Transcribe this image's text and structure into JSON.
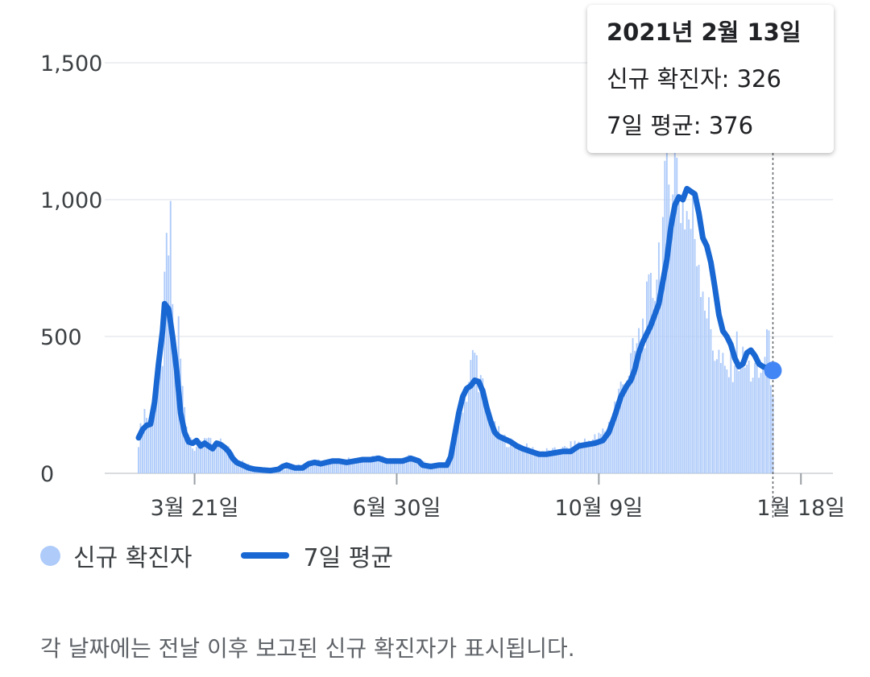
{
  "chart_data": {
    "type": "bar+line",
    "y_ticks": [
      "1,500",
      "1,000",
      "500",
      "0"
    ],
    "y_tick_values": [
      1500,
      1000,
      500,
      0
    ],
    "ylim": [
      0,
      1500
    ],
    "x_tick_labels": [
      "3월 21일",
      "6월 30일",
      "10월 9일",
      "1월 18일"
    ],
    "x_range_days": [
      0,
      347
    ],
    "x_tick_days": [
      28,
      129,
      230,
      331
    ],
    "grid": true,
    "series": [
      {
        "name": "신규 확진자",
        "kind": "bar",
        "color": "#aecbfa",
        "points": [
          [
            0,
            120
          ],
          [
            3,
            230
          ],
          [
            6,
            180
          ],
          [
            9,
            260
          ],
          [
            12,
            450
          ],
          [
            14,
            780
          ],
          [
            16,
            850
          ],
          [
            18,
            420
          ],
          [
            20,
            520
          ],
          [
            22,
            300
          ],
          [
            25,
            150
          ],
          [
            28,
            95
          ],
          [
            31,
            110
          ],
          [
            34,
            145
          ],
          [
            37,
            90
          ],
          [
            40,
            115
          ],
          [
            43,
            95
          ],
          [
            46,
            85
          ],
          [
            50,
            50
          ],
          [
            55,
            30
          ],
          [
            60,
            20
          ],
          [
            65,
            15
          ],
          [
            70,
            10
          ],
          [
            75,
            20
          ],
          [
            80,
            30
          ],
          [
            85,
            25
          ],
          [
            90,
            45
          ],
          [
            95,
            40
          ],
          [
            100,
            45
          ],
          [
            105,
            50
          ],
          [
            110,
            45
          ],
          [
            115,
            55
          ],
          [
            120,
            55
          ],
          [
            125,
            50
          ],
          [
            130,
            45
          ],
          [
            135,
            60
          ],
          [
            140,
            50
          ],
          [
            145,
            30
          ],
          [
            150,
            30
          ],
          [
            155,
            35
          ],
          [
            158,
            150
          ],
          [
            161,
            250
          ],
          [
            164,
            300
          ],
          [
            166,
            380
          ],
          [
            168,
            440
          ],
          [
            171,
            330
          ],
          [
            174,
            250
          ],
          [
            178,
            160
          ],
          [
            182,
            130
          ],
          [
            186,
            110
          ],
          [
            190,
            100
          ],
          [
            195,
            90
          ],
          [
            200,
            80
          ],
          [
            205,
            80
          ],
          [
            210,
            80
          ],
          [
            215,
            95
          ],
          [
            220,
            110
          ],
          [
            225,
            120
          ],
          [
            230,
            130
          ],
          [
            235,
            180
          ],
          [
            238,
            250
          ],
          [
            241,
            310
          ],
          [
            244,
            360
          ],
          [
            247,
            420
          ],
          [
            250,
            480
          ],
          [
            253,
            560
          ],
          [
            256,
            640
          ],
          [
            259,
            760
          ],
          [
            262,
            900
          ],
          [
            264,
            1020
          ],
          [
            266,
            1100
          ],
          [
            268,
            1160
          ],
          [
            270,
            1030
          ],
          [
            272,
            1000
          ],
          [
            275,
            930
          ],
          [
            278,
            880
          ],
          [
            281,
            760
          ],
          [
            284,
            600
          ],
          [
            287,
            480
          ],
          [
            290,
            420
          ],
          [
            293,
            360
          ],
          [
            296,
            390
          ],
          [
            299,
            450
          ],
          [
            302,
            400
          ],
          [
            305,
            380
          ],
          [
            308,
            370
          ],
          [
            311,
            350
          ],
          [
            314,
            500
          ],
          [
            317,
            326
          ]
        ]
      },
      {
        "name": "7일 평균",
        "kind": "line",
        "color": "#1967d2",
        "points": [
          [
            0,
            130
          ],
          [
            2,
            160
          ],
          [
            4,
            175
          ],
          [
            6,
            180
          ],
          [
            8,
            260
          ],
          [
            10,
            400
          ],
          [
            12,
            520
          ],
          [
            13,
            620
          ],
          [
            15,
            600
          ],
          [
            17,
            500
          ],
          [
            19,
            380
          ],
          [
            21,
            220
          ],
          [
            23,
            150
          ],
          [
            25,
            115
          ],
          [
            27,
            110
          ],
          [
            29,
            120
          ],
          [
            31,
            100
          ],
          [
            33,
            110
          ],
          [
            35,
            100
          ],
          [
            37,
            90
          ],
          [
            39,
            110
          ],
          [
            41,
            105
          ],
          [
            43,
            95
          ],
          [
            45,
            80
          ],
          [
            47,
            55
          ],
          [
            49,
            40
          ],
          [
            52,
            30
          ],
          [
            55,
            20
          ],
          [
            58,
            15
          ],
          [
            62,
            12
          ],
          [
            66,
            10
          ],
          [
            70,
            15
          ],
          [
            72,
            25
          ],
          [
            74,
            30
          ],
          [
            76,
            25
          ],
          [
            78,
            20
          ],
          [
            82,
            20
          ],
          [
            85,
            35
          ],
          [
            88,
            40
          ],
          [
            91,
            35
          ],
          [
            94,
            40
          ],
          [
            97,
            45
          ],
          [
            100,
            45
          ],
          [
            104,
            40
          ],
          [
            108,
            45
          ],
          [
            112,
            50
          ],
          [
            116,
            50
          ],
          [
            120,
            55
          ],
          [
            124,
            45
          ],
          [
            128,
            45
          ],
          [
            132,
            45
          ],
          [
            136,
            55
          ],
          [
            140,
            45
          ],
          [
            142,
            30
          ],
          [
            146,
            25
          ],
          [
            150,
            30
          ],
          [
            154,
            30
          ],
          [
            156,
            60
          ],
          [
            158,
            140
          ],
          [
            160,
            220
          ],
          [
            162,
            280
          ],
          [
            164,
            310
          ],
          [
            166,
            320
          ],
          [
            168,
            340
          ],
          [
            170,
            335
          ],
          [
            172,
            300
          ],
          [
            174,
            240
          ],
          [
            176,
            190
          ],
          [
            178,
            150
          ],
          [
            180,
            135
          ],
          [
            183,
            125
          ],
          [
            186,
            115
          ],
          [
            189,
            100
          ],
          [
            192,
            90
          ],
          [
            196,
            80
          ],
          [
            200,
            70
          ],
          [
            204,
            70
          ],
          [
            208,
            75
          ],
          [
            212,
            80
          ],
          [
            216,
            80
          ],
          [
            220,
            100
          ],
          [
            224,
            105
          ],
          [
            228,
            110
          ],
          [
            232,
            120
          ],
          [
            235,
            150
          ],
          [
            238,
            210
          ],
          [
            241,
            280
          ],
          [
            244,
            320
          ],
          [
            246,
            340
          ],
          [
            248,
            380
          ],
          [
            250,
            440
          ],
          [
            252,
            480
          ],
          [
            254,
            510
          ],
          [
            256,
            540
          ],
          [
            258,
            580
          ],
          [
            260,
            620
          ],
          [
            262,
            700
          ],
          [
            264,
            780
          ],
          [
            266,
            900
          ],
          [
            268,
            980
          ],
          [
            270,
            1010
          ],
          [
            272,
            1000
          ],
          [
            274,
            1040
          ],
          [
            276,
            1030
          ],
          [
            278,
            1020
          ],
          [
            280,
            950
          ],
          [
            282,
            860
          ],
          [
            284,
            830
          ],
          [
            286,
            770
          ],
          [
            288,
            680
          ],
          [
            290,
            580
          ],
          [
            292,
            520
          ],
          [
            294,
            500
          ],
          [
            296,
            470
          ],
          [
            298,
            420
          ],
          [
            300,
            390
          ],
          [
            302,
            400
          ],
          [
            304,
            440
          ],
          [
            306,
            450
          ],
          [
            308,
            430
          ],
          [
            310,
            400
          ],
          [
            312,
            390
          ],
          [
            314,
            385
          ],
          [
            317,
            376
          ]
        ]
      }
    ],
    "highlight": {
      "day": 317,
      "value": 376
    }
  },
  "tooltip": {
    "date": "2021년 2월 13일",
    "new_cases": "신규 확진자: 326",
    "avg": "7일 평균: 376"
  },
  "legend": {
    "items": [
      {
        "label": "신규 확진자",
        "color": "#aecbfa"
      },
      {
        "label": "7일 평균",
        "color": "#1967d2"
      }
    ]
  },
  "note": "각 날짜에는 전날 이후 보고된 신규 확진자가 표시됩니다."
}
